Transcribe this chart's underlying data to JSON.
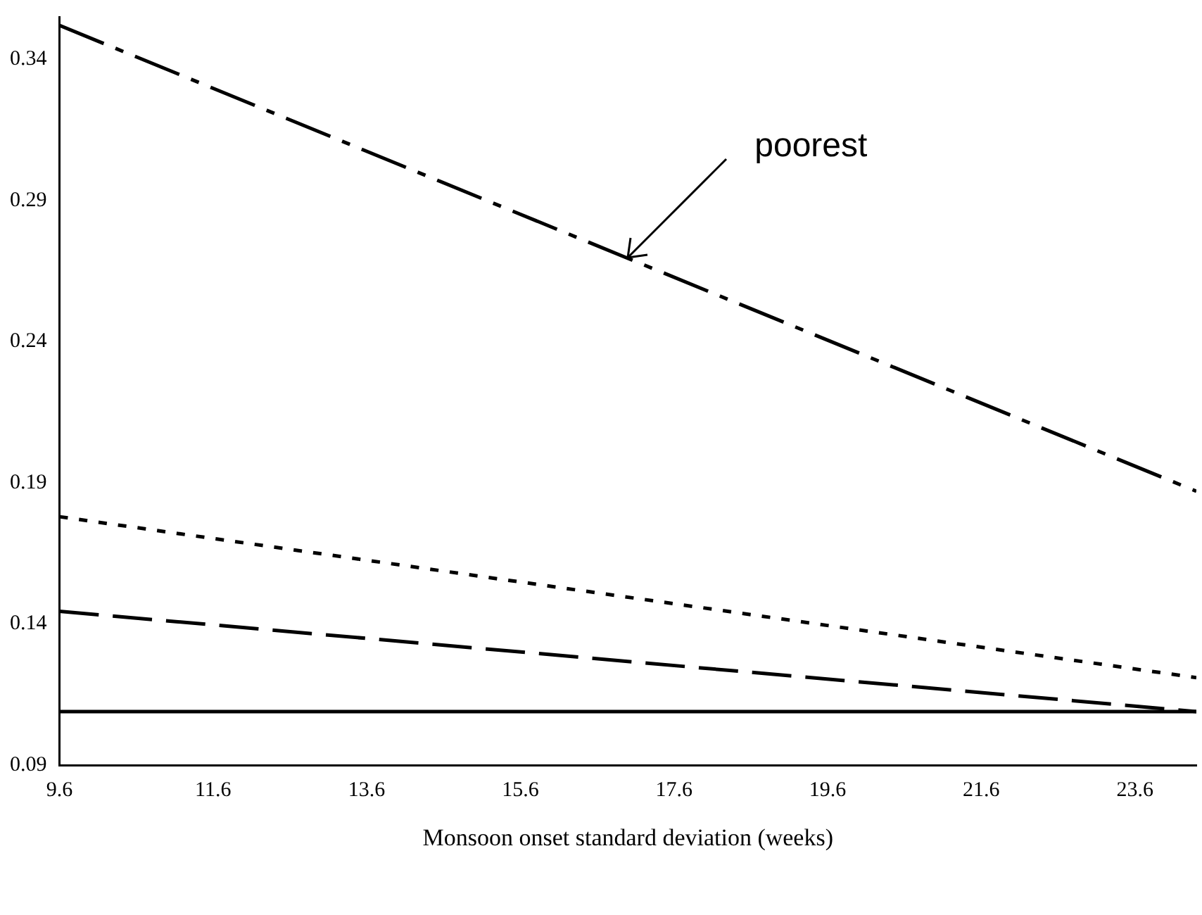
{
  "chart_data": {
    "type": "line",
    "xlabel": "Monsoon onset standard deviation (weeks)",
    "x": [
      9.6,
      24.4
    ],
    "series": [
      {
        "color": "#000000",
        "line_style": "dashdot",
        "values": [
          0.352,
          0.187
        ]
      },
      {
        "color": "#000000",
        "line_style": "dotted",
        "values": [
          0.178,
          0.121
        ]
      },
      {
        "color": "#000000",
        "line_style": "dashed",
        "values": [
          0.1445,
          0.109
        ]
      },
      {
        "color": "#000000",
        "line_style": "solid",
        "values": [
          0.109,
          0.109
        ]
      }
    ],
    "xlim": [
      9.6,
      24.4
    ],
    "xticks": [
      9.6,
      11.6,
      13.6,
      15.6,
      17.6,
      19.6,
      21.6,
      23.6
    ],
    "ylim": [
      0.09,
      0.355
    ],
    "yticks": [
      0.09,
      0.14,
      0.19,
      0.24,
      0.29,
      0.34
    ],
    "annotations": [
      {
        "text": "poorest",
        "x": 17.0,
        "y": 0.27
      }
    ],
    "grid": false,
    "legend": false,
    "marker": "none"
  }
}
